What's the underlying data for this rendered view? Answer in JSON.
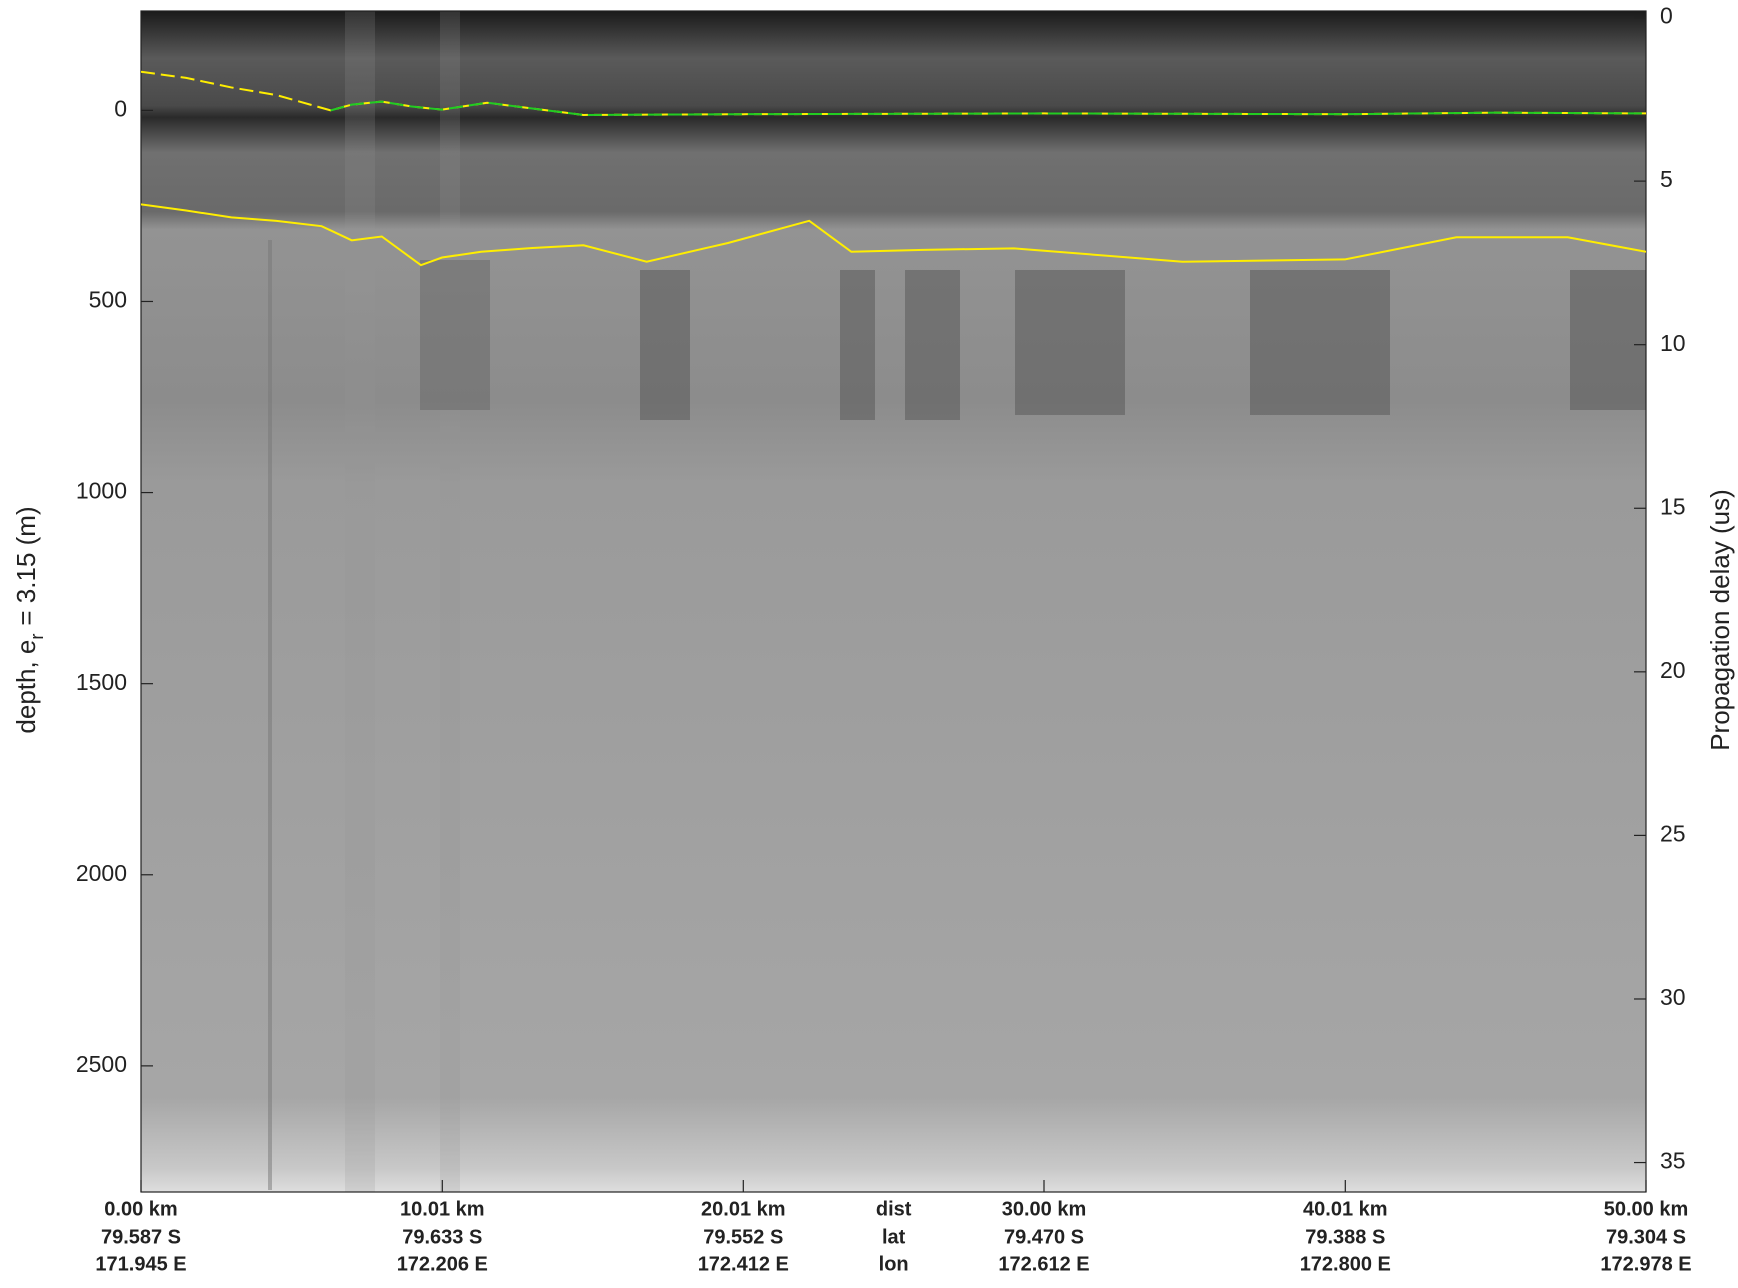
{
  "chart_data": {
    "type": "radargram",
    "y_label": "depth, e",
    "y_label_sub": "r",
    "y_label_rest": "= 3.15 (m)",
    "y2_label": "Propagation delay (us)",
    "xlim": [
      0,
      50
    ],
    "xticks": [
      {
        "value": 0,
        "label": "0.00 km"
      },
      {
        "value": 10.01,
        "label": "10.01 km"
      },
      {
        "value": 20.01,
        "label": "20.01 km"
      },
      {
        "value": 30.0,
        "label": "30.00 km"
      },
      {
        "value": 40.01,
        "label": "40.01 km"
      },
      {
        "value": 50.0,
        "label": "50.00 km"
      }
    ],
    "lat_labels": [
      "79.587 S",
      "79.633 S",
      "79.552 S",
      "79.470 S",
      "79.388 S",
      "79.304 S"
    ],
    "lon_labels": [
      "171.945 E",
      "172.206 E",
      "172.412 E",
      "172.612 E",
      "172.800 E",
      "172.978 E"
    ],
    "row_labels": [
      "dist",
      "lat",
      "lon"
    ],
    "ylim": [
      2830,
      -260
    ],
    "yticks": [
      0,
      500,
      1000,
      1500,
      2000,
      2500
    ],
    "y2lim": [
      35.9,
      -0.2
    ],
    "y2ticks": [
      0,
      5,
      10,
      15,
      20,
      25,
      30,
      35
    ],
    "series": [
      {
        "color": "#ffee00",
        "dash": true,
        "x": [
          0,
          1.5,
          3,
          4.5,
          6.3,
          7,
          8,
          9,
          10,
          11.5,
          13,
          14.7,
          20,
          30,
          40,
          45,
          50
        ],
        "values": [
          -101,
          -85,
          -60,
          -40,
          0,
          -15,
          -23,
          -10,
          -2,
          -20,
          -5,
          12,
          10,
          8,
          10,
          6,
          8
        ]
      },
      {
        "color": "#22cc22",
        "dash": true,
        "x": [
          6.3,
          7,
          8,
          9,
          10,
          11.5,
          13,
          14.7,
          20,
          30,
          40,
          45,
          50
        ],
        "values": [
          0,
          -15,
          -23,
          -10,
          -2,
          -20,
          -5,
          12,
          10,
          8,
          10,
          6,
          8
        ]
      },
      {
        "color": "#ffee00",
        "dash": false,
        "x": [
          0,
          1.5,
          3,
          4.5,
          6,
          7,
          8,
          9.3,
          10,
          11.3,
          13,
          14.7,
          16.8,
          19.5,
          22.2,
          23.6,
          26,
          29,
          34.6,
          40,
          43.7,
          47.4,
          50
        ],
        "values": [
          246,
          262,
          280,
          289,
          303,
          340,
          330,
          405,
          385,
          370,
          360,
          353,
          396,
          347,
          289,
          370,
          365,
          361,
          396,
          390,
          332,
          332,
          370
        ]
      }
    ]
  }
}
